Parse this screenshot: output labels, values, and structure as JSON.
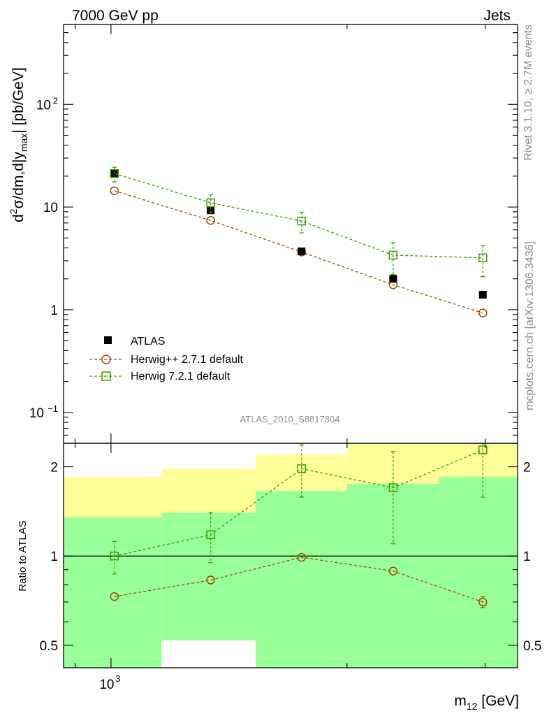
{
  "header": {
    "left": "7000 GeV pp",
    "right": "Jets"
  },
  "side_labels": {
    "rivet": "Rivet 3.1.10, ≥ 2.7M events",
    "mcplots": "mcplots.cern.ch [arXiv:1306.3436]"
  },
  "analysis_id": "ATLAS_2010_S8817804",
  "colors": {
    "data": "#000000",
    "herwigpp": "#9a4a00",
    "herwig7": "#3a9a00",
    "band_inner": "#99ff99",
    "band_outer": "#ffff99"
  },
  "chart_data": [
    {
      "type": "scatter",
      "panel": "main",
      "yscale": "log",
      "xscale": "log",
      "ylim": [
        0.05,
        600
      ],
      "ylabel": {
        "a": "d",
        "b": "2",
        "c": "σ/dm,d|y",
        "d": "max",
        "e": "| [pb/GeV]"
      },
      "y_ticks": [
        {
          "v": 0.1,
          "base": "10",
          "exp": "−1"
        },
        {
          "v": 1,
          "label": "1"
        },
        {
          "v": 10,
          "label": "10"
        },
        {
          "v": 100,
          "base": "10",
          "exp": "2"
        }
      ],
      "legend_position": "lower-left",
      "series": [
        {
          "name": "ATLAS",
          "marker": "filled-square",
          "x": [
            1010,
            1340,
            1750,
            2290,
            2980
          ],
          "y": [
            21.0,
            9.3,
            3.7,
            2.0,
            1.4
          ]
        },
        {
          "name": "Herwig++ 2.7.1 default",
          "marker": "open-circle",
          "x": [
            1010,
            1340,
            1750,
            2290,
            2980
          ],
          "y": [
            14.4,
            7.4,
            3.65,
            1.75,
            0.93
          ],
          "err_lo": [
            null,
            null,
            null,
            null,
            null
          ],
          "err_hi": [
            null,
            null,
            null,
            null,
            null
          ]
        },
        {
          "name": "Herwig 7.2.1 default",
          "marker": "open-square",
          "x": [
            1010,
            1340,
            1750,
            2290,
            2980
          ],
          "y": [
            21.2,
            11.0,
            7.3,
            3.4,
            3.2
          ],
          "err_lo": [
            17.6,
            8.8,
            5.6,
            2.2,
            2.1
          ],
          "err_hi": [
            24.4,
            13.2,
            8.9,
            4.5,
            4.2
          ]
        }
      ]
    },
    {
      "type": "scatter",
      "panel": "ratio",
      "ylabel": "Ratio to ATLAS",
      "yscale": "log",
      "ylim": [
        0.42,
        2.4
      ],
      "xlabel": {
        "a": "m",
        "b": "12",
        "c": " [GeV]"
      },
      "x_ticks": [
        {
          "v": 1000,
          "base": "10",
          "exp": "3"
        }
      ],
      "y_ticks": [
        {
          "v": 0.5,
          "label": "0.5"
        },
        {
          "v": 1,
          "label": "1"
        },
        {
          "v": 2,
          "label": "2"
        }
      ],
      "bands": [
        {
          "x0": 870,
          "x1": 1160,
          "inner": [
            0.42,
            1.35
          ],
          "outer": [
            0.61,
            1.85
          ]
        },
        {
          "x0": 1160,
          "x1": 1530,
          "inner": [
            0.52,
            1.4
          ],
          "outer": [
            0.52,
            1.97
          ]
        },
        {
          "x0": 1530,
          "x1": 2000,
          "inner": [
            0.42,
            1.66
          ],
          "outer": [
            0.42,
            2.2
          ]
        },
        {
          "x0": 2000,
          "x1": 2620,
          "inner": [
            0.42,
            1.75
          ],
          "outer": [
            0.42,
            2.4
          ]
        },
        {
          "x0": 2620,
          "x1": 3300,
          "inner": [
            0.42,
            1.85
          ],
          "outer": [
            0.42,
            2.4
          ]
        }
      ],
      "reference_line": 1,
      "series": [
        {
          "name": "Herwig++ 2.7.1 default",
          "x": [
            1010,
            1340,
            1750,
            2290,
            2980
          ],
          "y": [
            0.73,
            0.83,
            0.99,
            0.89,
            0.7
          ],
          "err_lo": [
            null,
            null,
            null,
            null,
            0.67
          ],
          "err_hi": [
            null,
            null,
            null,
            null,
            0.73
          ]
        },
        {
          "name": "Herwig 7.2.1 default",
          "x": [
            1010,
            1340,
            1750,
            2290,
            2980
          ],
          "y": [
            1.0,
            1.18,
            1.97,
            1.7,
            2.28
          ],
          "err_lo": [
            0.87,
            0.95,
            1.58,
            1.1,
            1.58
          ],
          "err_hi": [
            1.12,
            1.4,
            2.37,
            2.25,
            2.4
          ]
        }
      ]
    }
  ]
}
